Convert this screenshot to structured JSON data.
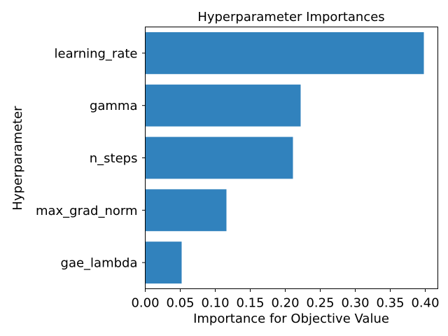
{
  "chart_data": {
    "type": "bar",
    "orientation": "horizontal",
    "title": "Hyperparameter Importances",
    "xlabel": "Importance for Objective Value",
    "ylabel": "Hyperparameter",
    "categories": [
      "learning_rate",
      "gamma",
      "n_steps",
      "max_grad_norm",
      "gae_lambda"
    ],
    "values": [
      0.398,
      0.222,
      0.211,
      0.116,
      0.052
    ],
    "xlim": [
      0,
      0.418
    ],
    "xticks": [
      0.0,
      0.05,
      0.1,
      0.15,
      0.2,
      0.25,
      0.3,
      0.35,
      0.4
    ],
    "xtick_labels": [
      "0.00",
      "0.05",
      "0.10",
      "0.15",
      "0.20",
      "0.25",
      "0.30",
      "0.35",
      "0.40"
    ],
    "bar_color": "#3182bd",
    "grid": false,
    "legend": false
  }
}
